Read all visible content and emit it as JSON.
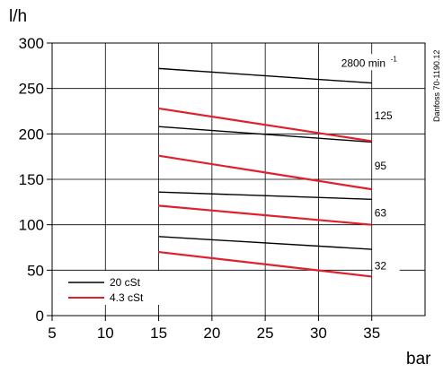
{
  "chart_data": {
    "type": "line",
    "xlabel": "bar",
    "ylabel": "l/h",
    "xlim": [
      5,
      40
    ],
    "ylim": [
      0,
      300
    ],
    "xticks": [
      "5",
      "10",
      "15",
      "20",
      "25",
      "30",
      "35"
    ],
    "yticks": [
      "0",
      "50",
      "100",
      "150",
      "200",
      "250",
      "300"
    ],
    "xtick_values": [
      5,
      10,
      15,
      20,
      25,
      30,
      35
    ],
    "ytick_values": [
      0,
      50,
      100,
      150,
      200,
      250,
      300
    ],
    "grid": true,
    "legend_position": "bottom-left",
    "reference": "Danfoss 70-1190.12",
    "legend": [
      {
        "label": "20 cSt",
        "color": "#000000"
      },
      {
        "label": "4.3 cSt",
        "color": "#e0202a"
      }
    ],
    "speed_labels": [
      {
        "text": "2800 min",
        "sup": "-1",
        "x": 35,
        "y": 275
      },
      {
        "text": "125",
        "x": 35,
        "y": 217
      },
      {
        "text": "95",
        "x": 35,
        "y": 162
      },
      {
        "text": "63",
        "x": 35,
        "y": 110
      },
      {
        "text": "32",
        "x": 35,
        "y": 52
      }
    ],
    "series": [
      {
        "group": "2800",
        "viscosity": "20 cSt",
        "color": "#000000",
        "x": [
          15,
          35
        ],
        "y": [
          272,
          256
        ]
      },
      {
        "group": "125",
        "viscosity": "20 cSt",
        "color": "#000000",
        "x": [
          15,
          35
        ],
        "y": [
          208,
          191
        ]
      },
      {
        "group": "125",
        "viscosity": "4.3 cSt",
        "color": "#e0202a",
        "x": [
          15,
          35
        ],
        "y": [
          228,
          192
        ]
      },
      {
        "group": "95",
        "viscosity": "4.3 cSt",
        "color": "#e0202a",
        "x": [
          15,
          35
        ],
        "y": [
          176,
          139
        ]
      },
      {
        "group": "63",
        "viscosity": "20 cSt",
        "color": "#000000",
        "x": [
          15,
          35
        ],
        "y": [
          136,
          128
        ]
      },
      {
        "group": "63",
        "viscosity": "4.3 cSt",
        "color": "#e0202a",
        "x": [
          15,
          35
        ],
        "y": [
          121,
          100
        ]
      },
      {
        "group": "32",
        "viscosity": "20 cSt",
        "color": "#000000",
        "x": [
          15,
          35
        ],
        "y": [
          87,
          73
        ]
      },
      {
        "group": "32",
        "viscosity": "4.3 cSt",
        "color": "#e0202a",
        "x": [
          15,
          35
        ],
        "y": [
          70,
          43
        ]
      }
    ]
  }
}
